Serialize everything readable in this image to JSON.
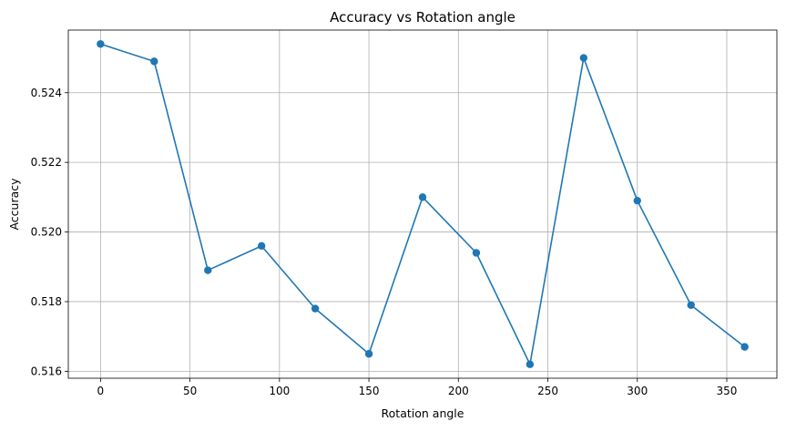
{
  "colors": {
    "series": "#1f77b4",
    "grid": "#b0b0b0",
    "axis": "#000000",
    "background": "#ffffff"
  },
  "chart_data": {
    "type": "line",
    "title": "Accuracy vs Rotation angle",
    "xlabel": "Rotation angle",
    "ylabel": "Accuracy",
    "grid": true,
    "marker": "circle",
    "xlim": [
      -18,
      378
    ],
    "ylim": [
      0.5158,
      0.5258
    ],
    "xticks": [
      0,
      50,
      100,
      150,
      200,
      250,
      300,
      350
    ],
    "xtick_labels": [
      "0",
      "50",
      "100",
      "150",
      "200",
      "250",
      "300",
      "350"
    ],
    "yticks": [
      0.516,
      0.518,
      0.52,
      0.522,
      0.524
    ],
    "ytick_labels": [
      "0.516",
      "0.518",
      "0.520",
      "0.522",
      "0.524"
    ],
    "series": [
      {
        "x": [
          0,
          30,
          60,
          90,
          120,
          150,
          180,
          210,
          240,
          270,
          300,
          330,
          360
        ],
        "y": [
          0.5254,
          0.5249,
          0.5189,
          0.5196,
          0.5178,
          0.5165,
          0.521,
          0.5194,
          0.5162,
          0.525,
          0.5209,
          0.5179,
          0.5167
        ]
      }
    ]
  }
}
